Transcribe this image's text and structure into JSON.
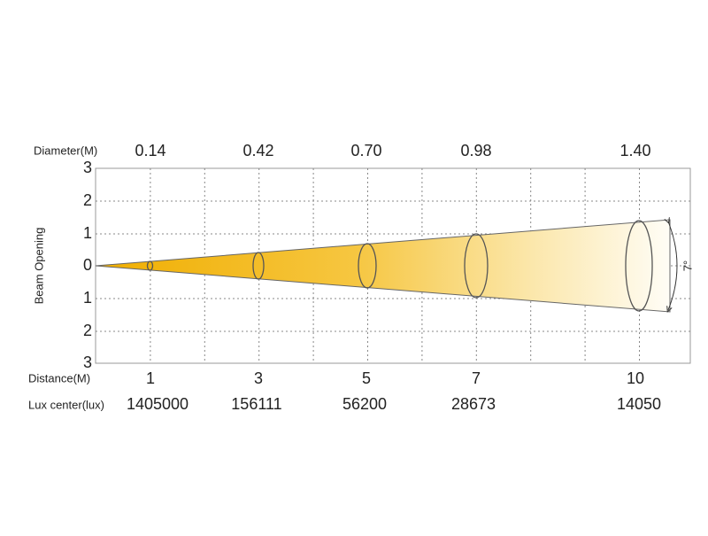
{
  "diameter_label": "Diameter(M)",
  "diameters": [
    "0.14",
    "0.42",
    "0.70",
    "0.98",
    "1.40"
  ],
  "axis_label": "Beam Opening",
  "opening_ticks": [
    "3",
    "2",
    "1",
    "0",
    "1",
    "2",
    "3"
  ],
  "distance_label": "Distance(M)",
  "distances": [
    "1",
    "3",
    "5",
    "7",
    "10"
  ],
  "lux_label": "Lux center(lux)",
  "lux": [
    "1405000",
    "156111",
    "56200",
    "28673",
    "14050"
  ],
  "angle": "7°"
}
